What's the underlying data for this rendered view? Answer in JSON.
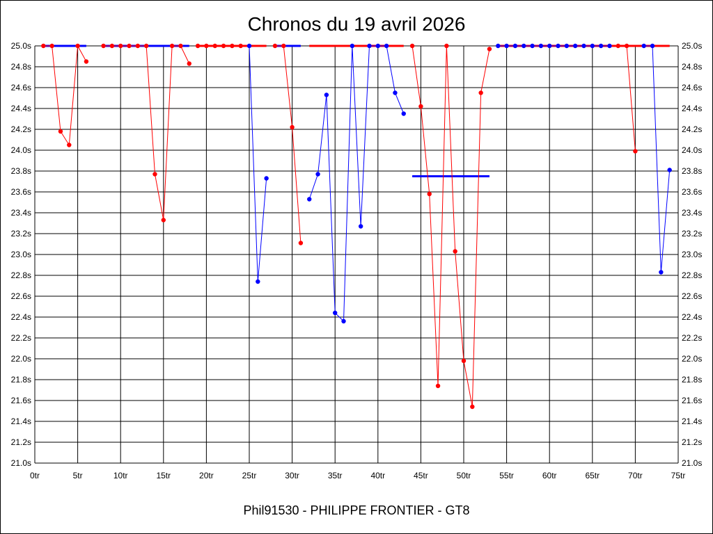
{
  "chart_data": {
    "type": "line",
    "title": "Chronos du 19 avril 2026",
    "caption": "Phil91530 - PHILIPPE FRONTIER - GT8",
    "x_ticks": [
      0,
      5,
      10,
      15,
      20,
      25,
      30,
      35,
      40,
      45,
      50,
      55,
      60,
      65,
      70,
      75
    ],
    "x_tick_suffix": "tr",
    "xlim": [
      0,
      75
    ],
    "y_ticks": [
      21.0,
      21.2,
      21.4,
      21.6,
      21.8,
      22.0,
      22.2,
      22.4,
      22.6,
      22.8,
      23.0,
      23.2,
      23.4,
      23.6,
      23.8,
      24.0,
      24.2,
      24.4,
      24.6,
      24.8,
      25.0
    ],
    "y_tick_suffix": "s",
    "ylim": [
      21.0,
      25.0
    ],
    "grid": true,
    "colors": {
      "red": "#ff0000",
      "blue": "#0000ff",
      "grid": "#000000"
    },
    "segments": [
      {
        "color": "red",
        "points": [
          [
            1,
            25.0
          ],
          [
            2,
            25.0
          ],
          [
            3,
            24.18
          ],
          [
            4,
            24.05
          ],
          [
            5,
            25.0
          ],
          [
            6,
            24.85
          ]
        ]
      },
      {
        "color": "red",
        "points": [
          [
            8,
            25.0
          ],
          [
            9,
            25.0
          ],
          [
            10,
            25.0
          ],
          [
            11,
            25.0
          ],
          [
            12,
            25.0
          ],
          [
            13,
            25.0
          ],
          [
            14,
            23.77
          ],
          [
            15,
            23.33
          ],
          [
            16,
            25.0
          ],
          [
            17,
            25.0
          ],
          [
            18,
            24.83
          ]
        ]
      },
      {
        "color": "red",
        "points": [
          [
            19,
            25.0
          ],
          [
            20,
            25.0
          ],
          [
            21,
            25.0
          ],
          [
            22,
            25.0
          ],
          [
            23,
            25.0
          ],
          [
            24,
            25.0
          ]
        ]
      },
      {
        "color": "blue",
        "points": [
          [
            25,
            25.0
          ],
          [
            26,
            22.74
          ],
          [
            27,
            23.73
          ]
        ]
      },
      {
        "color": "red",
        "points": [
          [
            28,
            25.0
          ],
          [
            29,
            25.0
          ],
          [
            30,
            24.22
          ],
          [
            31,
            23.11
          ]
        ]
      },
      {
        "color": "blue",
        "points": [
          [
            32,
            23.53
          ],
          [
            33,
            23.77
          ],
          [
            34,
            24.53
          ],
          [
            35,
            22.44
          ],
          [
            36,
            22.36
          ],
          [
            37,
            25.0
          ],
          [
            38,
            23.27
          ],
          [
            39,
            25.0
          ],
          [
            40,
            25.0
          ],
          [
            41,
            25.0
          ],
          [
            42,
            24.55
          ],
          [
            43,
            24.35
          ]
        ]
      },
      {
        "color": "red",
        "points": [
          [
            44,
            25.0
          ],
          [
            45,
            24.42
          ],
          [
            46,
            23.58
          ],
          [
            47,
            21.74
          ],
          [
            48,
            25.0
          ],
          [
            49,
            23.03
          ],
          [
            50,
            21.98
          ],
          [
            51,
            21.54
          ],
          [
            52,
            24.55
          ],
          [
            53,
            24.97
          ]
        ]
      },
      {
        "color": "blue",
        "points": [
          [
            54,
            25.0
          ],
          [
            55,
            25.0
          ],
          [
            56,
            25.0
          ],
          [
            57,
            25.0
          ],
          [
            58,
            25.0
          ],
          [
            59,
            25.0
          ],
          [
            60,
            25.0
          ],
          [
            61,
            25.0
          ],
          [
            62,
            25.0
          ],
          [
            63,
            25.0
          ],
          [
            64,
            25.0
          ],
          [
            65,
            25.0
          ],
          [
            66,
            25.0
          ],
          [
            67,
            25.0
          ]
        ]
      },
      {
        "color": "red",
        "points": [
          [
            68,
            25.0
          ],
          [
            69,
            25.0
          ],
          [
            70,
            23.99
          ]
        ]
      },
      {
        "color": "blue",
        "points": [
          [
            71,
            25.0
          ],
          [
            72,
            25.0
          ],
          [
            73,
            22.83
          ],
          [
            74,
            23.81
          ]
        ]
      }
    ],
    "reference_lines": [
      {
        "color": "blue",
        "x": [
          1,
          6
        ],
        "y": 25.0
      },
      {
        "color": "blue",
        "x": [
          8,
          18
        ],
        "y": 25.0
      },
      {
        "color": "red",
        "x": [
          19,
          27
        ],
        "y": 25.0
      },
      {
        "color": "blue",
        "x": [
          28,
          31
        ],
        "y": 25.0
      },
      {
        "color": "red",
        "x": [
          32,
          43
        ],
        "y": 25.0
      },
      {
        "color": "blue",
        "x": [
          44,
          53
        ],
        "y": 23.75
      },
      {
        "color": "red",
        "x": [
          54,
          74
        ],
        "y": 25.0
      }
    ]
  }
}
